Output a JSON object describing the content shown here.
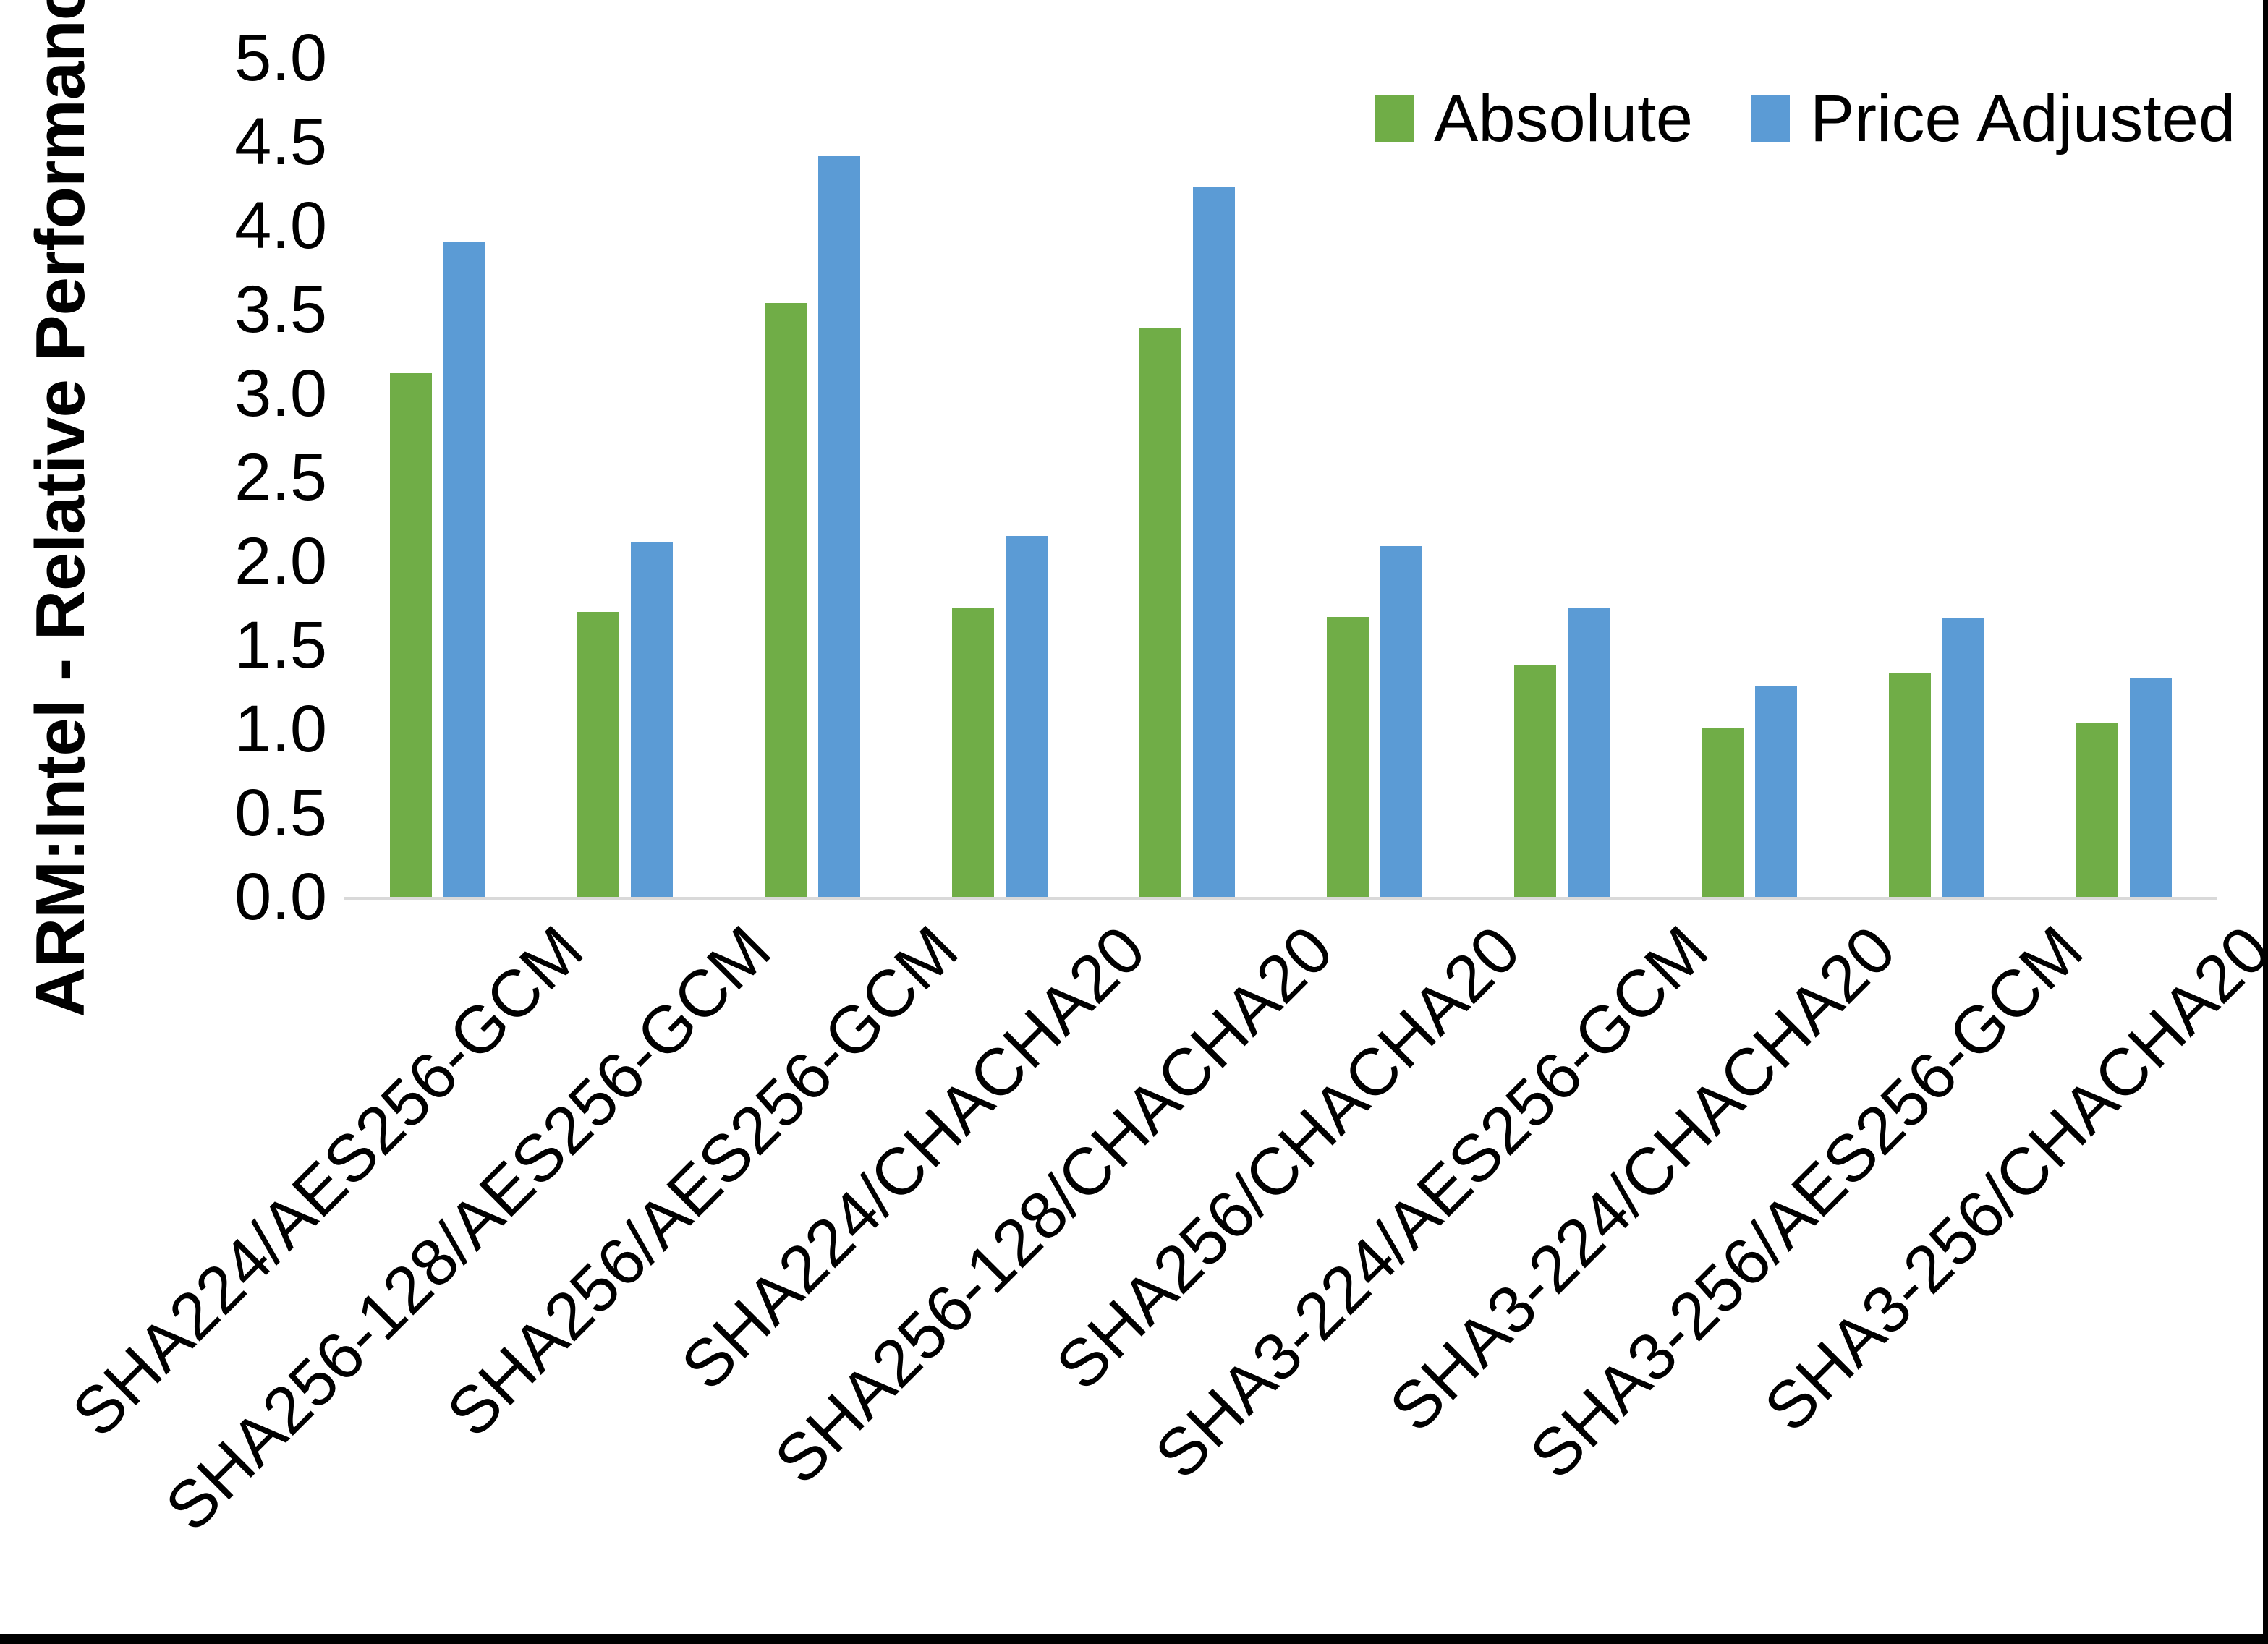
{
  "window": {
    "background": "#FFFFFF",
    "border_color": "#000000"
  },
  "chart_data": {
    "type": "bar",
    "title": "",
    "xlabel": "",
    "ylabel": "ARM:Intel - Relative Performance",
    "ylim": [
      0.0,
      5.0
    ],
    "ytick_step": 0.5,
    "ytick_labels": [
      "0.0",
      "0.5",
      "1.0",
      "1.5",
      "2.0",
      "2.5",
      "3.0",
      "3.5",
      "4.0",
      "4.5",
      "5.0"
    ],
    "grid": false,
    "legend_position": "top-right",
    "axis_line_color": "#D9D9D9",
    "text_color": "#000000",
    "categories": [
      "SHA224/AES256-GCM",
      "SHA256-128/AES256-GCM",
      "SHA256/AES256-GCM",
      "SHA224/CHACHA20",
      "SHA256-128/CHACHA20",
      "SHA256/CHACHA20",
      "SHA3-224/AES256-GCM",
      "SHA3-224/CHACHA20",
      "SHA3-256/AES256-GCM",
      "SHA3-256/CHACHA20"
    ],
    "series": [
      {
        "name": "Absolute",
        "color": "#70AD47",
        "values": [
          3.12,
          1.7,
          3.54,
          1.72,
          3.39,
          1.67,
          1.38,
          1.01,
          1.33,
          1.04
        ]
      },
      {
        "name": "Price Adjusted",
        "color": "#5B9BD5",
        "values": [
          3.9,
          2.11,
          4.42,
          2.15,
          4.23,
          2.09,
          1.72,
          1.26,
          1.66,
          1.3
        ]
      }
    ]
  }
}
